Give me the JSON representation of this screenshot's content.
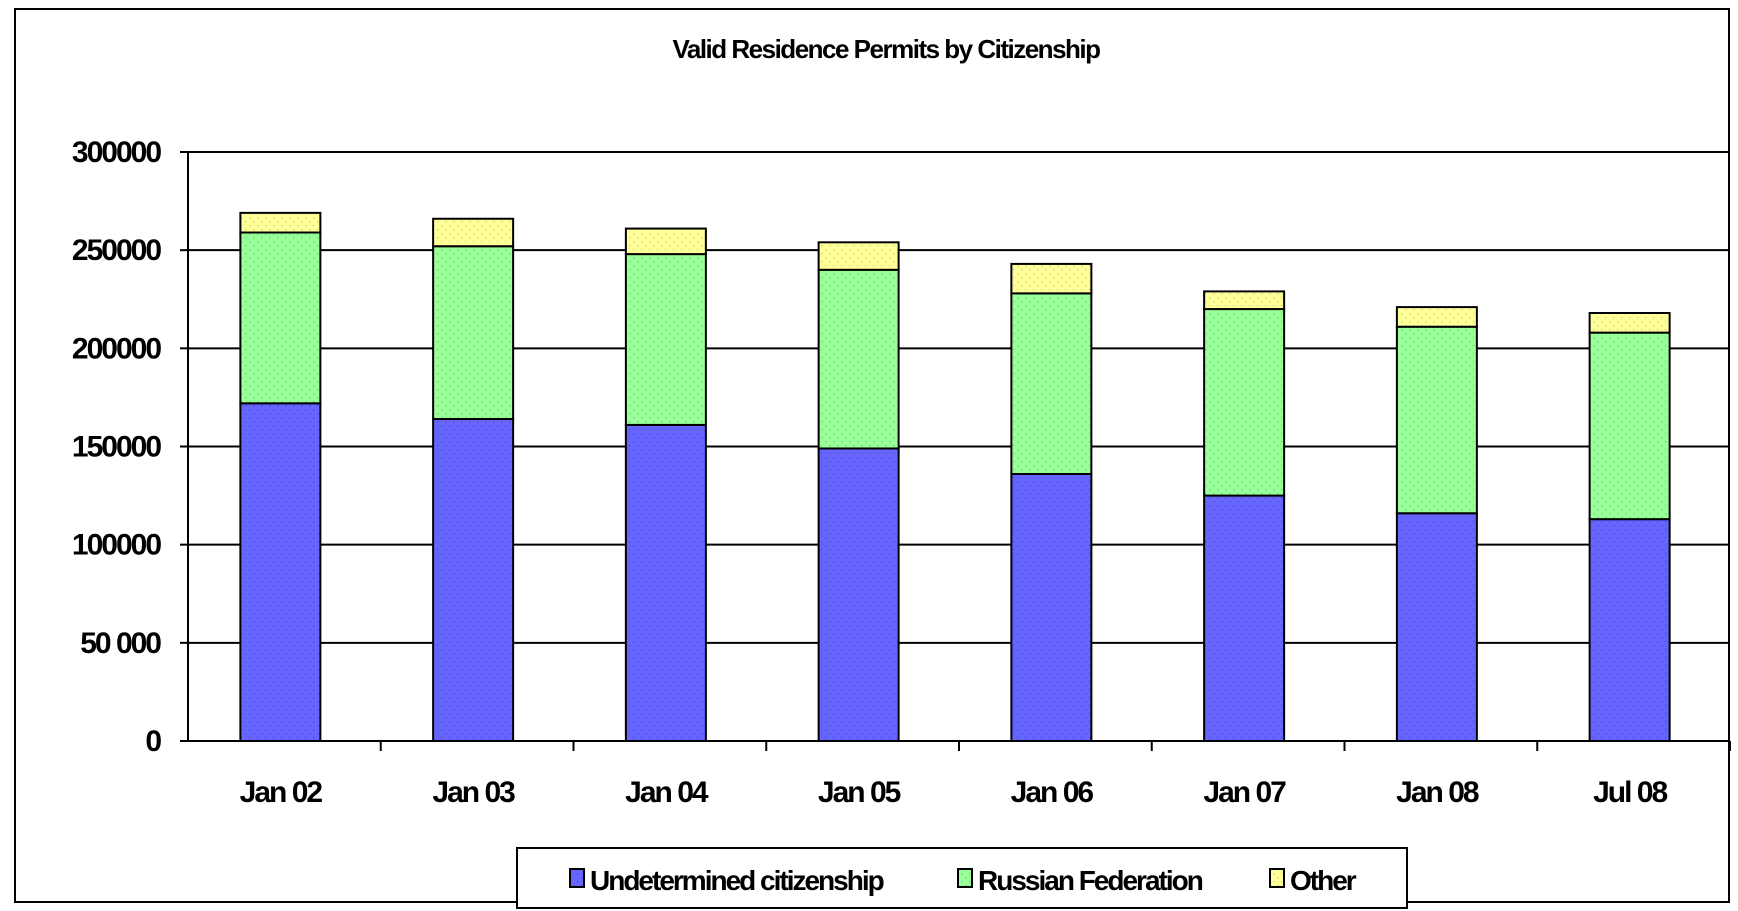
{
  "chart_data": {
    "type": "bar",
    "stacked": true,
    "title": "Valid Residence Permits by Citizenship",
    "xlabel": "",
    "ylabel": "",
    "categories": [
      "Jan 02",
      "Jan 03",
      "Jan 04",
      "Jan 05",
      "Jan 06",
      "Jan 07",
      "Jan 08",
      "Jul 08"
    ],
    "series": [
      {
        "name": "Undetermined citizenship",
        "color": "#6666FF",
        "values": [
          172000,
          164000,
          161000,
          149000,
          136000,
          125000,
          116000,
          113000
        ]
      },
      {
        "name": "Russian Federation",
        "color": "#99FF99",
        "values": [
          87000,
          88000,
          87000,
          91000,
          92000,
          95000,
          95000,
          95000
        ]
      },
      {
        "name": "Other",
        "color": "#FFFF99",
        "values": [
          10000,
          14000,
          13000,
          14000,
          15000,
          9000,
          10000,
          10000
        ]
      }
    ],
    "yticks": [
      "0",
      "50 000",
      "100000",
      "150000",
      "200000",
      "250000",
      "300000"
    ],
    "ylim": [
      0,
      300000
    ],
    "grid": true,
    "legend_position": "bottom"
  }
}
